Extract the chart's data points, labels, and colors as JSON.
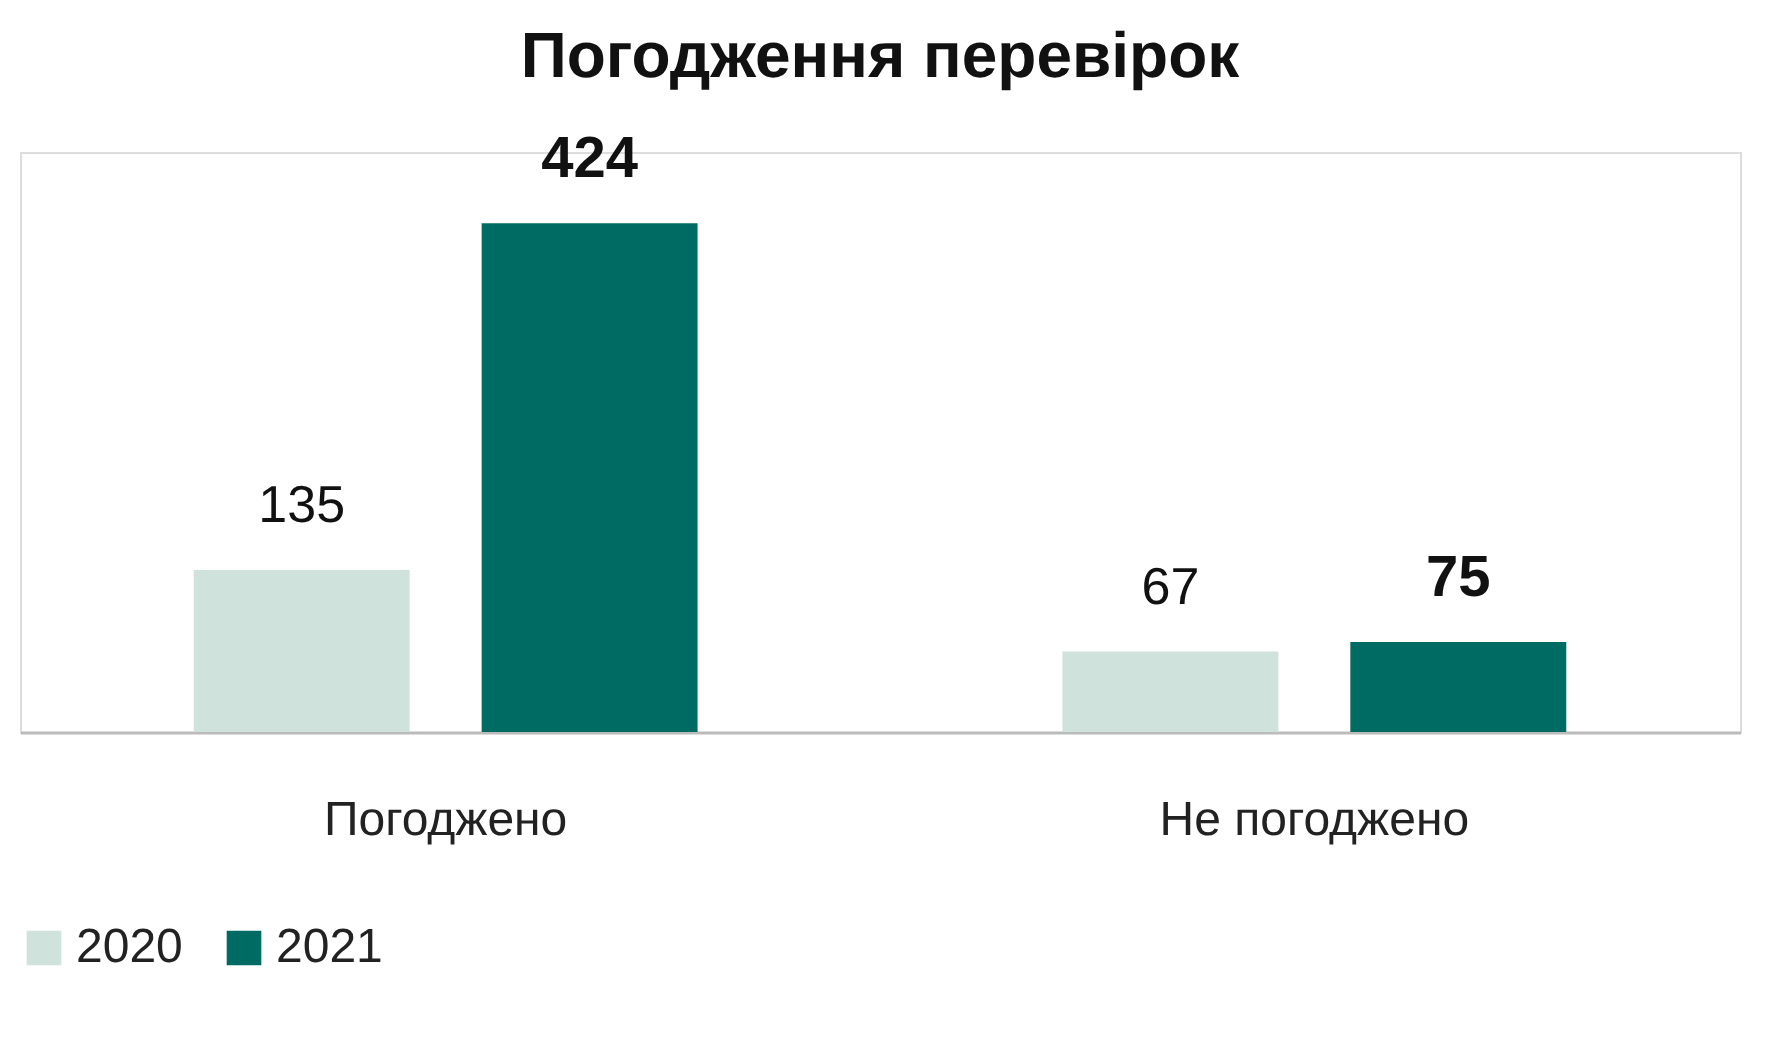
{
  "chart_data": {
    "type": "bar",
    "title": "Погодження перевірок",
    "categories": [
      "Погоджено",
      "Не погоджено"
    ],
    "series": [
      {
        "name": "2020",
        "color": "#cfe3dc",
        "values": [
          135,
          67
        ]
      },
      {
        "name": "2021",
        "color": "#006b63",
        "values": [
          424,
          75
        ]
      }
    ],
    "data_labels": true,
    "legend": "bottom",
    "grid": false
  }
}
